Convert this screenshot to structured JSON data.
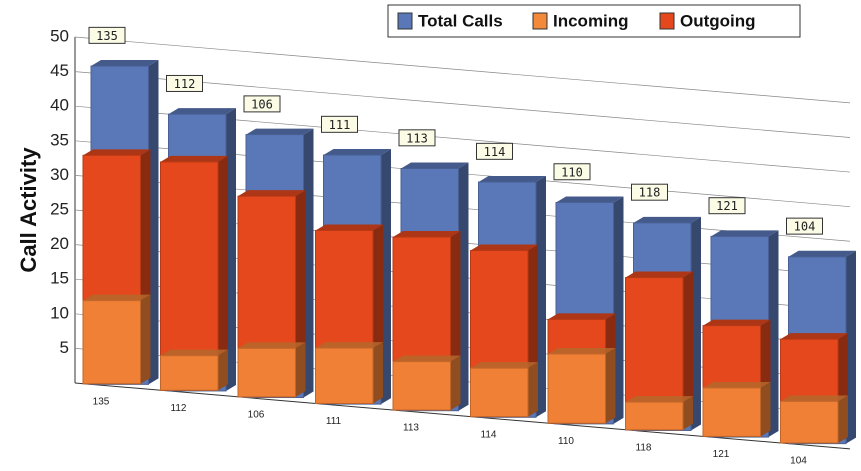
{
  "chart_data": {
    "type": "bar3d",
    "y_label": "Call Activity",
    "categories": [
      "135",
      "112",
      "106",
      "111",
      "113",
      "114",
      "110",
      "118",
      "121",
      "104"
    ],
    "series": [
      {
        "name": "Total Calls",
        "color": "#5a78b8",
        "values": [
          46,
          40,
          38,
          36,
          35,
          34,
          32,
          30,
          29,
          27
        ]
      },
      {
        "name": "Incoming",
        "color": "#f28a3a",
        "values": [
          12,
          5,
          7,
          8,
          7,
          7,
          10,
          4,
          7,
          6
        ]
      },
      {
        "name": "Outgoing",
        "color": "#e5481c",
        "values": [
          33,
          33,
          29,
          25,
          25,
          24,
          15,
          22,
          16,
          15
        ]
      }
    ],
    "ylim": [
      0,
      50
    ],
    "yticks": [
      5,
      10,
      15,
      20,
      25,
      30,
      35,
      40,
      45,
      50
    ],
    "grid": true,
    "legend": "top-right"
  }
}
